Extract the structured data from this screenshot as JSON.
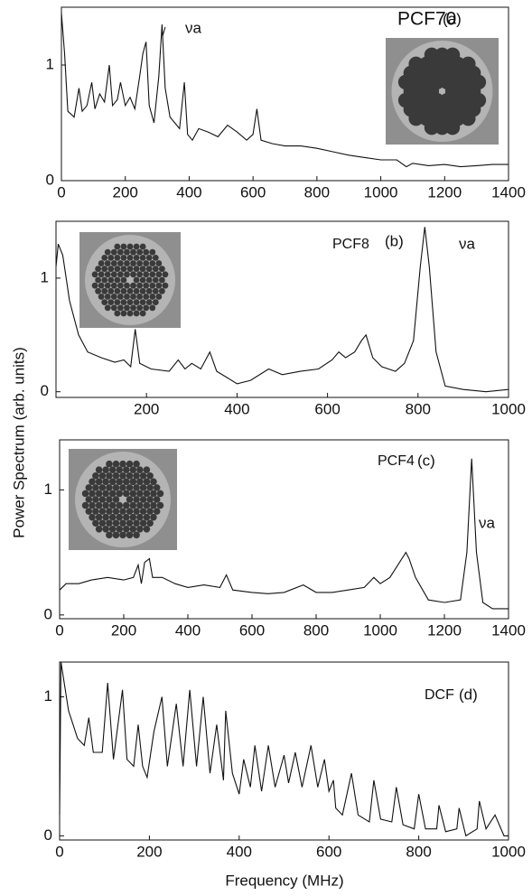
{
  "ylabel": "Power Spectrum (arb. units)",
  "xlabel": "Frequency (MHz)",
  "chart_data": [
    {
      "type": "line",
      "label": "PCF70",
      "panel": "(a)",
      "peak_label": "νa",
      "x": [
        0,
        10,
        20,
        40,
        55,
        65,
        80,
        95,
        105,
        120,
        135,
        150,
        160,
        175,
        185,
        200,
        215,
        230,
        245,
        255,
        265,
        275,
        290,
        305,
        315,
        325,
        340,
        355,
        370,
        385,
        395,
        410,
        430,
        460,
        490,
        520,
        550,
        580,
        600,
        612,
        625,
        660,
        700,
        750,
        800,
        850,
        900,
        950,
        1000,
        1050,
        1080,
        1100,
        1150,
        1200,
        1250,
        1300,
        1350,
        1400
      ],
      "series": [
        {
          "color": "#111111",
          "values": [
            1.45,
            1.1,
            0.6,
            0.55,
            0.8,
            0.6,
            0.65,
            0.85,
            0.62,
            0.75,
            0.68,
            1.0,
            0.65,
            0.7,
            0.85,
            0.65,
            0.72,
            0.62,
            0.9,
            1.1,
            1.2,
            0.65,
            0.5,
            0.9,
            1.35,
            0.8,
            0.55,
            0.5,
            0.45,
            0.85,
            0.4,
            0.35,
            0.45,
            0.42,
            0.38,
            0.48,
            0.42,
            0.35,
            0.4,
            0.62,
            0.35,
            0.32,
            0.3,
            0.3,
            0.28,
            0.25,
            0.22,
            0.2,
            0.18,
            0.18,
            0.12,
            0.15,
            0.13,
            0.14,
            0.12,
            0.13,
            0.14,
            0.14
          ]
        }
      ],
      "xlim": [
        0,
        1400
      ],
      "ylim": [
        0,
        1.5
      ],
      "xticks": [
        0,
        200,
        400,
        600,
        800,
        1000,
        1200,
        1400
      ],
      "yticks": [
        0,
        1
      ]
    },
    {
      "type": "line",
      "label": "PCF8",
      "panel": "(b)",
      "peak_label": "νa",
      "x": [
        0,
        5,
        15,
        30,
        50,
        70,
        100,
        130,
        150,
        165,
        175,
        185,
        210,
        250,
        270,
        285,
        300,
        320,
        340,
        355,
        380,
        400,
        430,
        470,
        500,
        540,
        580,
        610,
        625,
        640,
        660,
        675,
        685,
        700,
        720,
        750,
        770,
        790,
        805,
        815,
        825,
        840,
        860,
        900,
        950,
        1000
      ],
      "series": [
        {
          "color": "#111111",
          "values": [
            1.1,
            1.3,
            1.2,
            0.8,
            0.5,
            0.35,
            0.3,
            0.26,
            0.28,
            0.22,
            0.55,
            0.25,
            0.2,
            0.18,
            0.28,
            0.2,
            0.25,
            0.2,
            0.35,
            0.18,
            0.12,
            0.07,
            0.1,
            0.2,
            0.15,
            0.18,
            0.2,
            0.28,
            0.35,
            0.3,
            0.35,
            0.45,
            0.5,
            0.3,
            0.22,
            0.18,
            0.25,
            0.45,
            1.1,
            1.45,
            1.1,
            0.35,
            0.05,
            0.02,
            0.0,
            0.02
          ]
        }
      ],
      "xlim": [
        0,
        1000
      ],
      "ylim": [
        -0.05,
        1.5
      ],
      "xticks": [
        200,
        400,
        600,
        800,
        1000
      ],
      "yticks": [
        0,
        1
      ]
    },
    {
      "type": "line",
      "label": "PCF4",
      "panel": "(c)",
      "peak_label": "νa",
      "x": [
        0,
        20,
        60,
        100,
        150,
        200,
        230,
        245,
        255,
        265,
        280,
        290,
        320,
        360,
        400,
        450,
        500,
        520,
        540,
        600,
        650,
        700,
        760,
        800,
        850,
        900,
        950,
        980,
        1000,
        1030,
        1060,
        1080,
        1090,
        1110,
        1150,
        1200,
        1250,
        1270,
        1285,
        1300,
        1320,
        1350,
        1400
      ],
      "series": [
        {
          "color": "#111111",
          "values": [
            0.2,
            0.25,
            0.25,
            0.28,
            0.3,
            0.28,
            0.3,
            0.4,
            0.25,
            0.42,
            0.45,
            0.3,
            0.3,
            0.25,
            0.22,
            0.24,
            0.22,
            0.32,
            0.2,
            0.18,
            0.17,
            0.18,
            0.24,
            0.18,
            0.18,
            0.2,
            0.22,
            0.3,
            0.25,
            0.3,
            0.42,
            0.5,
            0.45,
            0.3,
            0.12,
            0.1,
            0.12,
            0.5,
            1.25,
            0.5,
            0.1,
            0.05,
            0.05
          ]
        }
      ],
      "xlim": [
        0,
        1400
      ],
      "ylim": [
        -0.03,
        1.4
      ],
      "xticks": [
        0,
        200,
        400,
        600,
        800,
        1000,
        1200,
        1400
      ],
      "yticks": [
        0,
        1
      ]
    },
    {
      "type": "line",
      "label": "DCF",
      "panel": "(d)",
      "x": [
        0,
        3,
        20,
        40,
        55,
        65,
        75,
        95,
        107,
        120,
        140,
        150,
        165,
        175,
        185,
        195,
        210,
        228,
        240,
        260,
        275,
        290,
        305,
        320,
        335,
        350,
        365,
        370,
        385,
        400,
        410,
        425,
        435,
        450,
        465,
        480,
        500,
        510,
        525,
        540,
        560,
        575,
        590,
        600,
        610,
        615,
        630,
        650,
        665,
        690,
        700,
        715,
        740,
        750,
        765,
        790,
        800,
        815,
        840,
        845,
        860,
        885,
        890,
        905,
        930,
        935,
        950,
        970,
        990,
        1000
      ],
      "series": [
        {
          "color": "#111111",
          "values": [
            0.15,
            1.25,
            0.9,
            0.7,
            0.65,
            0.85,
            0.6,
            0.6,
            1.1,
            0.55,
            1.05,
            0.55,
            0.5,
            0.8,
            0.5,
            0.42,
            0.75,
            1.0,
            0.5,
            0.95,
            0.5,
            1.05,
            0.5,
            1.0,
            0.45,
            0.8,
            0.4,
            0.9,
            0.45,
            0.3,
            0.55,
            0.35,
            0.65,
            0.32,
            0.65,
            0.35,
            0.58,
            0.38,
            0.6,
            0.35,
            0.65,
            0.35,
            0.55,
            0.32,
            0.4,
            0.2,
            0.15,
            0.45,
            0.15,
            0.1,
            0.4,
            0.12,
            0.1,
            0.35,
            0.08,
            0.05,
            0.3,
            0.05,
            0.05,
            0.22,
            0.03,
            0.05,
            0.2,
            0.0,
            0.05,
            0.25,
            0.05,
            0.15,
            0.0,
            0.0
          ]
        }
      ],
      "xlim": [
        0,
        1000
      ],
      "ylim": [
        -0.03,
        1.25
      ],
      "xticks": [
        0,
        200,
        400,
        600,
        800,
        1000
      ],
      "yticks": [
        0,
        1
      ]
    }
  ]
}
